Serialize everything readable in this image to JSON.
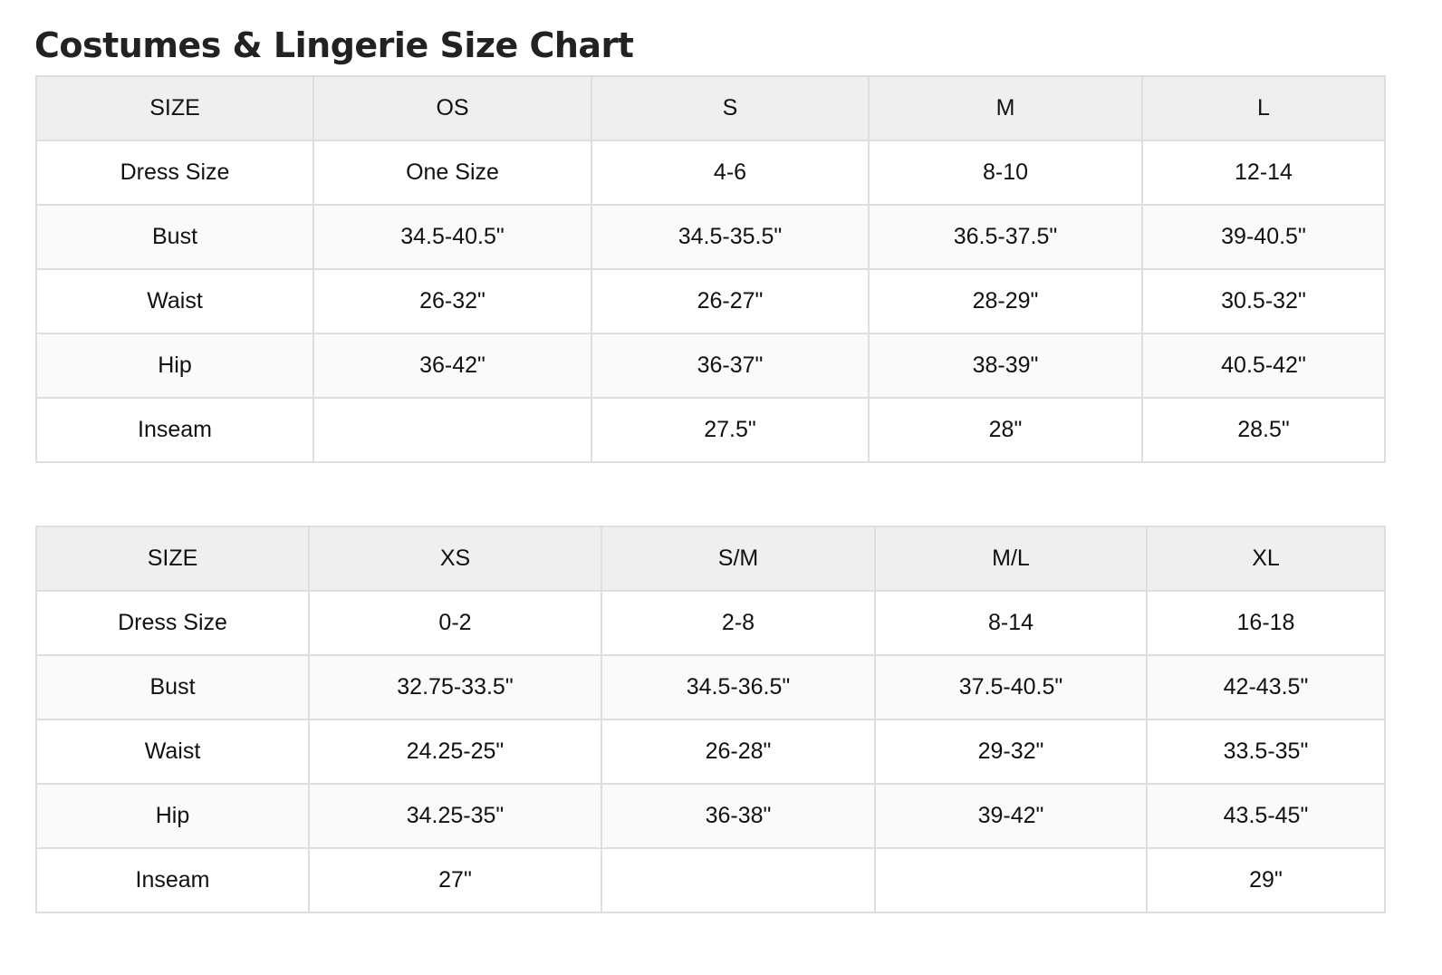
{
  "title": "Costumes & Lingerie Size Chart",
  "colors": {
    "header_bg": "#efefef",
    "alt_row_bg": "#fafafa",
    "border": "#dedede"
  },
  "tables": [
    {
      "header": [
        "SIZE",
        "OS",
        "S",
        "M",
        "L"
      ],
      "rows": [
        [
          "Dress Size",
          "One Size",
          "4-6",
          "8-10",
          "12-14"
        ],
        [
          "Bust",
          "34.5-40.5\"",
          "34.5-35.5\"",
          "36.5-37.5\"",
          "39-40.5\""
        ],
        [
          "Waist",
          "26-32\"",
          "26-27\"",
          "28-29\"",
          "30.5-32\""
        ],
        [
          "Hip",
          "36-42\"",
          "36-37\"",
          "38-39\"",
          "40.5-42\""
        ],
        [
          "Inseam",
          "",
          "27.5\"",
          "28\"",
          "28.5\""
        ]
      ]
    },
    {
      "header": [
        "SIZE",
        "XS",
        "S/M",
        "M/L",
        "XL"
      ],
      "rows": [
        [
          "Dress Size",
          "0-2",
          "2-8",
          "8-14",
          "16-18"
        ],
        [
          "Bust",
          "32.75-33.5\"",
          "34.5-36.5\"",
          "37.5-40.5\"",
          "42-43.5\""
        ],
        [
          "Waist",
          "24.25-25\"",
          "26-28\"",
          "29-32\"",
          "33.5-35\""
        ],
        [
          "Hip",
          "34.25-35\"",
          "36-38\"",
          "39-42\"",
          "43.5-45\""
        ],
        [
          "Inseam",
          "27\"",
          "",
          "",
          "29\""
        ]
      ]
    }
  ]
}
